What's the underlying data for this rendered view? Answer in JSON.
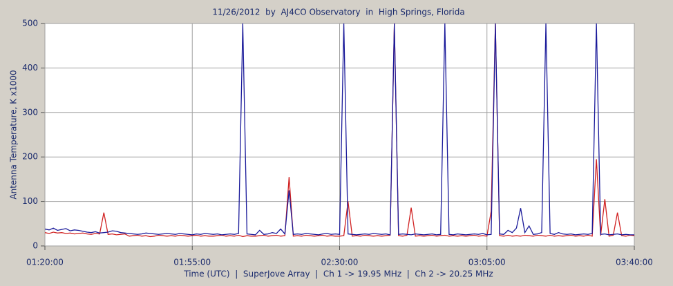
{
  "chart_data": {
    "type": "line",
    "title": "11/26/2012  by  AJ4CO Observatory  in  High Springs, Florida",
    "xlabel": "Time (UTC)  |  SuperJove Array  |  Ch 1 -> 19.95 MHz  |  Ch 2 -> 20.25 MHz",
    "ylabel": "Antenna Temperature, K x1000",
    "xlim": [
      80,
      220
    ],
    "xticks": [
      {
        "value": 80,
        "label": "01:20:00"
      },
      {
        "value": 115,
        "label": "01:55:00"
      },
      {
        "value": 150,
        "label": "02:30:00"
      },
      {
        "value": 185,
        "label": "03:05:00"
      },
      {
        "value": 220,
        "label": "03:40:00"
      }
    ],
    "ylim": [
      0,
      500
    ],
    "yticks": [
      0,
      100,
      200,
      300,
      400,
      500
    ],
    "grid": true,
    "x": [
      80,
      81,
      82,
      83,
      84,
      85,
      86,
      87,
      88,
      89,
      90,
      91,
      92,
      93,
      94,
      95,
      96,
      97,
      98,
      99,
      100,
      101,
      102,
      103,
      104,
      105,
      106,
      107,
      108,
      109,
      110,
      111,
      112,
      113,
      114,
      115,
      116,
      117,
      118,
      119,
      120,
      121,
      122,
      123,
      124,
      125,
      126,
      127,
      128,
      129,
      130,
      131,
      132,
      133,
      134,
      135,
      136,
      137,
      138,
      139,
      140,
      141,
      142,
      143,
      144,
      145,
      146,
      147,
      148,
      149,
      150,
      151,
      152,
      153,
      154,
      155,
      156,
      157,
      158,
      159,
      160,
      161,
      162,
      163,
      164,
      165,
      166,
      167,
      168,
      169,
      170,
      171,
      172,
      173,
      174,
      175,
      176,
      177,
      178,
      179,
      180,
      181,
      182,
      183,
      184,
      185,
      186,
      187,
      188,
      189,
      190,
      191,
      192,
      193,
      194,
      195,
      196,
      197,
      198,
      199,
      200,
      201,
      202,
      203,
      204,
      205,
      206,
      207,
      208,
      209,
      210,
      211,
      212,
      213,
      214,
      215,
      216,
      217,
      218,
      219,
      220
    ],
    "series": [
      {
        "color": "#d02020",
        "values": [
          30,
          28,
          31,
          29,
          30,
          28,
          29,
          27,
          28,
          29,
          27,
          26,
          28,
          27,
          75,
          26,
          27,
          25,
          26,
          27,
          22,
          23,
          24,
          22,
          23,
          21,
          22,
          24,
          23,
          22,
          23,
          22,
          24,
          23,
          22,
          23,
          24,
          22,
          23,
          22,
          22,
          23,
          24,
          22,
          23,
          22,
          24,
          21,
          23,
          22,
          22,
          23,
          24,
          22,
          23,
          24,
          22,
          23,
          155,
          22,
          23,
          22,
          24,
          23,
          22,
          23,
          24,
          22,
          23,
          22,
          22,
          23,
          100,
          22,
          23,
          22,
          24,
          23,
          22,
          23,
          22,
          23,
          24,
          500,
          23,
          22,
          24,
          86,
          22,
          23,
          22,
          23,
          24,
          22,
          23,
          24,
          22,
          23,
          22,
          23,
          22,
          23,
          24,
          22,
          23,
          22,
          78,
          500,
          23,
          22,
          24,
          22,
          23,
          22,
          24,
          23,
          22,
          24,
          23,
          22,
          24,
          22,
          23,
          22,
          23,
          24,
          22,
          23,
          22,
          24,
          22,
          195,
          23,
          105,
          22,
          24,
          75,
          23,
          22,
          24,
          23
        ]
      },
      {
        "color": "#1a1a9a",
        "values": [
          38,
          36,
          40,
          35,
          37,
          39,
          34,
          36,
          35,
          33,
          31,
          30,
          32,
          29,
          30,
          31,
          34,
          33,
          30,
          29,
          28,
          27,
          26,
          27,
          29,
          28,
          27,
          26,
          27,
          28,
          27,
          26,
          28,
          27,
          26,
          25,
          27,
          26,
          28,
          27,
          26,
          27,
          25,
          26,
          27,
          26,
          28,
          500,
          27,
          26,
          25,
          35,
          26,
          27,
          30,
          28,
          38,
          27,
          125,
          26,
          27,
          26,
          28,
          27,
          26,
          25,
          27,
          28,
          26,
          27,
          26,
          500,
          27,
          26,
          25,
          26,
          27,
          26,
          28,
          27,
          26,
          27,
          25,
          500,
          26,
          27,
          26,
          25,
          27,
          26,
          25,
          26,
          27,
          25,
          26,
          500,
          26,
          25,
          27,
          26,
          25,
          26,
          27,
          26,
          28,
          25,
          26,
          500,
          27,
          26,
          35,
          30,
          40,
          85,
          30,
          45,
          26,
          27,
          30,
          500,
          28,
          26,
          30,
          27,
          26,
          27,
          25,
          26,
          27,
          26,
          28,
          500,
          26,
          27,
          25,
          26,
          27,
          25,
          26,
          25,
          25
        ]
      }
    ]
  }
}
